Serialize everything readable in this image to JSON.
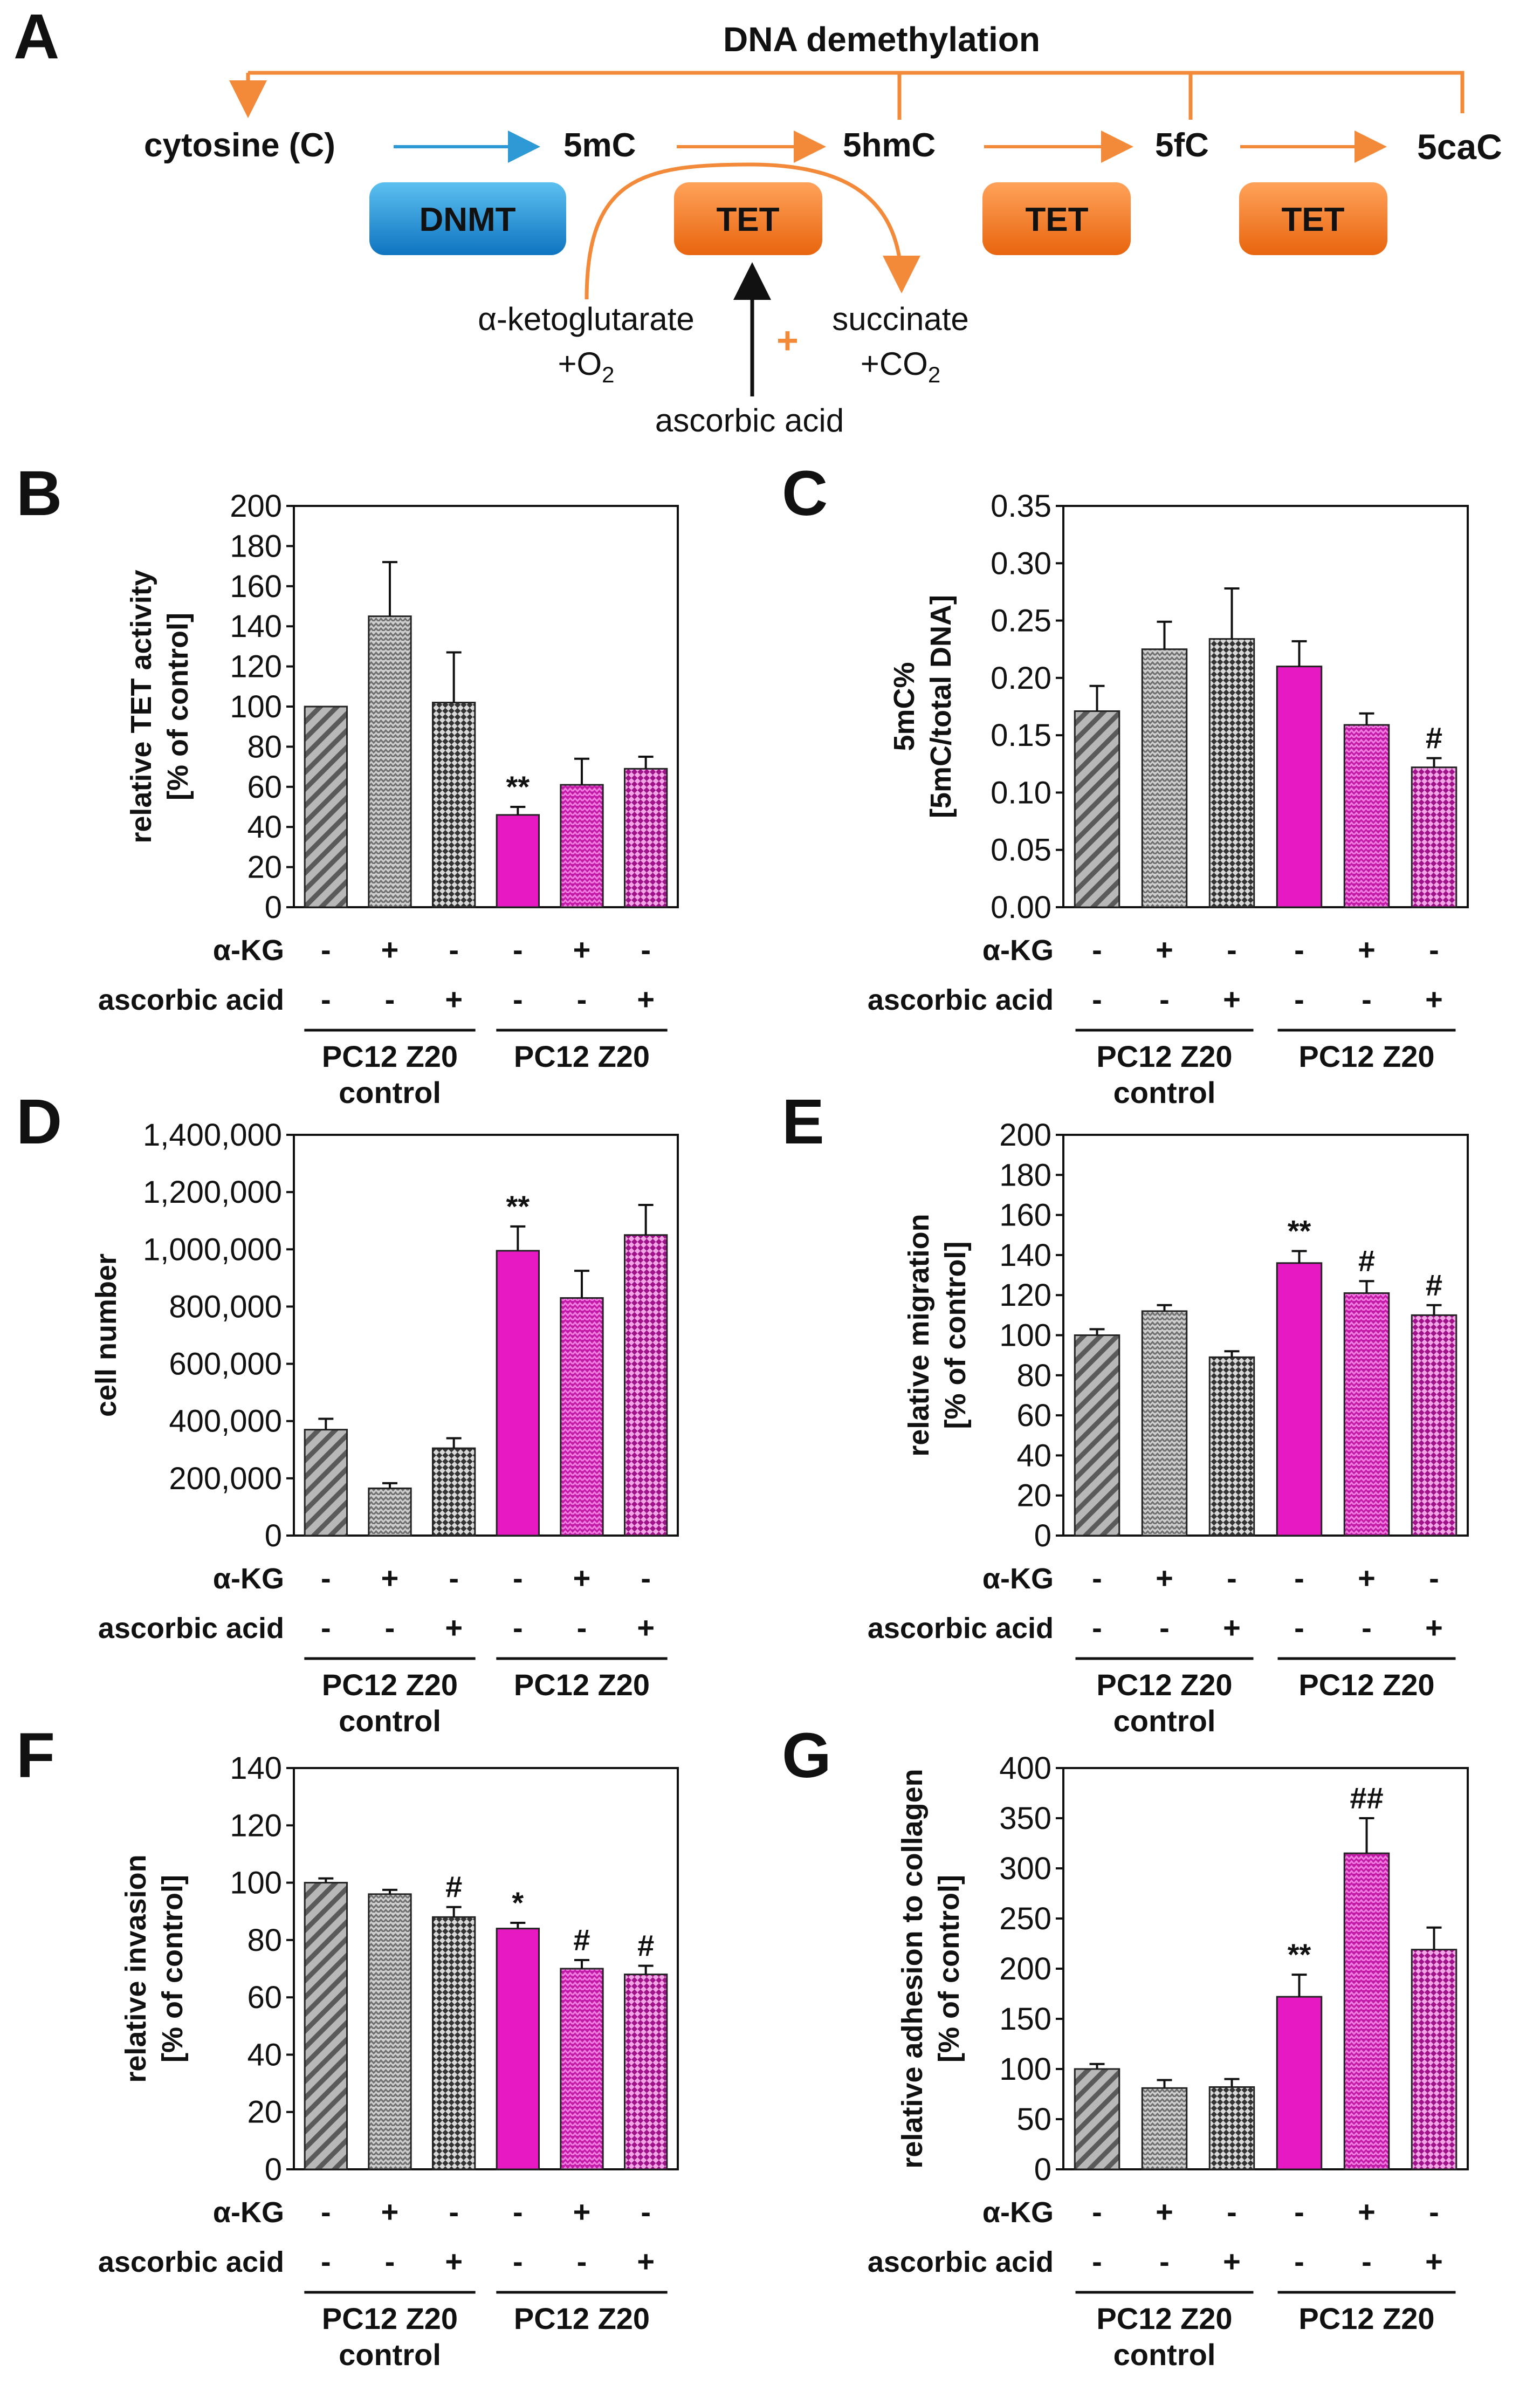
{
  "colors": {
    "orange": "#F28A3A",
    "blue": "#2D9AD6",
    "magenta": "#E619C2",
    "grey": "#9A9A9A",
    "dnmt_fill": "#1E8FD8",
    "tet_fill": "#F47A21"
  },
  "panelA": {
    "letter": "A",
    "title": "DNA demethylation",
    "nodes": [
      "cytosine (C)",
      "5mC",
      "5hmC",
      "5fC",
      "5caC"
    ],
    "enzymes": [
      "DNMT",
      "TET",
      "TET",
      "TET"
    ],
    "cofactor_in": "α-ketoglutarate",
    "cofactor_in2": "+O",
    "o2_sub": "2",
    "cofactor_out": "succinate",
    "cofactor_out2": "+CO",
    "co2_sub": "2",
    "plus": "+",
    "ascorbic": "ascorbic acid"
  },
  "conditions": {
    "row1_label": "α-KG",
    "row2_label": "ascorbic acid",
    "akg": [
      "-",
      "+",
      "-",
      "-",
      "+",
      "-"
    ],
    "aa": [
      "-",
      "-",
      "+",
      "-",
      "-",
      "+"
    ],
    "group1": "PC12 Z20",
    "group1_sub": "control",
    "group2": "PC12 Z20"
  },
  "chart_data": [
    {
      "panel": "B",
      "type": "bar",
      "ylabel": "relative TET activity",
      "ylabel2": "[% of control]",
      "ylim": [
        0,
        200
      ],
      "ticks": [
        "0",
        "20",
        "40",
        "60",
        "80",
        "100",
        "120",
        "140",
        "160",
        "180",
        "200"
      ],
      "tick_values": [
        0,
        20,
        40,
        60,
        80,
        100,
        120,
        140,
        160,
        180,
        200
      ],
      "values": [
        100,
        145,
        102,
        46,
        61,
        69
      ],
      "errors": [
        0,
        27,
        25,
        4,
        13,
        6
      ],
      "annotations": [
        "",
        "",
        "",
        "**",
        "",
        ""
      ]
    },
    {
      "panel": "C",
      "type": "bar",
      "ylabel": "5mC%",
      "ylabel2": "[5mC/total DNA]",
      "ylim": [
        0,
        0.35
      ],
      "ticks": [
        "0.00",
        "0.05",
        "0.10",
        "0.15",
        "0.20",
        "0.25",
        "0.30",
        "0.35"
      ],
      "tick_values": [
        0,
        0.05,
        0.1,
        0.15,
        0.2,
        0.25,
        0.3,
        0.35
      ],
      "values": [
        0.171,
        0.225,
        0.234,
        0.21,
        0.159,
        0.122
      ],
      "errors": [
        0.022,
        0.024,
        0.044,
        0.022,
        0.01,
        0.008
      ],
      "annotations": [
        "",
        "",
        "",
        "",
        "",
        "#"
      ]
    },
    {
      "panel": "D",
      "type": "bar",
      "ylabel": "cell number",
      "ylabel2": "",
      "ylim": [
        0,
        1400000
      ],
      "ticks": [
        "0",
        "200,000",
        "400,000",
        "600,000",
        "800,000",
        "1,000,000",
        "1,200,000",
        "1,400,000"
      ],
      "tick_values": [
        0,
        200000,
        400000,
        600000,
        800000,
        1000000,
        1200000,
        1400000
      ],
      "values": [
        370000,
        165000,
        305000,
        995000,
        830000,
        1050000
      ],
      "errors": [
        38000,
        18000,
        35000,
        85000,
        95000,
        105000
      ],
      "annotations": [
        "",
        "",
        "",
        "**",
        "",
        ""
      ]
    },
    {
      "panel": "E",
      "type": "bar",
      "ylabel": "relative migration",
      "ylabel2": "[% of control]",
      "ylim": [
        0,
        200
      ],
      "ticks": [
        "0",
        "20",
        "40",
        "60",
        "80",
        "100",
        "120",
        "140",
        "160",
        "180",
        "200"
      ],
      "tick_values": [
        0,
        20,
        40,
        60,
        80,
        100,
        120,
        140,
        160,
        180,
        200
      ],
      "values": [
        100,
        112,
        89,
        136,
        121,
        110
      ],
      "errors": [
        3,
        3,
        3,
        6,
        6,
        5
      ],
      "annotations": [
        "",
        "",
        "",
        "**",
        "#",
        "#"
      ]
    },
    {
      "panel": "F",
      "type": "bar",
      "ylabel": "relative invasion",
      "ylabel2": "[% of control]",
      "ylim": [
        0,
        140
      ],
      "ticks": [
        "0",
        "20",
        "40",
        "60",
        "80",
        "100",
        "120",
        "140"
      ],
      "tick_values": [
        0,
        20,
        40,
        60,
        80,
        100,
        120,
        140
      ],
      "values": [
        100,
        96,
        88,
        84,
        70,
        68
      ],
      "errors": [
        1.5,
        1.5,
        3.5,
        2,
        3,
        3
      ],
      "annotations": [
        "",
        "",
        "#",
        "*",
        "#",
        "#"
      ]
    },
    {
      "panel": "G",
      "type": "bar",
      "ylabel": "relative adhesion to collagen",
      "ylabel2": "[% of control]",
      "ylim": [
        0,
        400
      ],
      "ticks": [
        "0",
        "50",
        "100",
        "150",
        "200",
        "250",
        "300",
        "350",
        "400"
      ],
      "tick_values": [
        0,
        50,
        100,
        150,
        200,
        250,
        300,
        350,
        400
      ],
      "values": [
        100,
        81,
        82,
        172,
        315,
        219
      ],
      "errors": [
        5,
        8,
        8,
        22,
        35,
        22
      ],
      "annotations": [
        "",
        "",
        "",
        "**",
        "##",
        ""
      ]
    }
  ]
}
